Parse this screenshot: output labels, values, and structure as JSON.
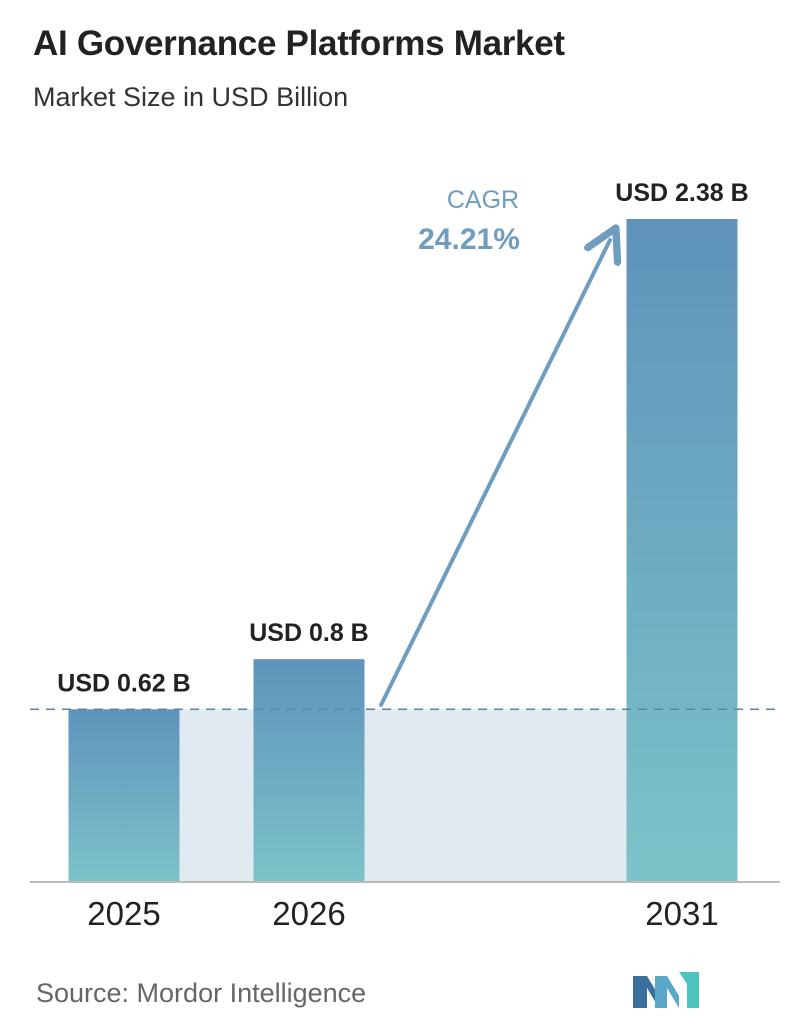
{
  "header": {
    "title": "AI Governance Platforms Market",
    "subtitle": "Market Size in USD Billion"
  },
  "chart_data": {
    "type": "bar",
    "categories": [
      "2025",
      "2026",
      "2031"
    ],
    "values": [
      0.62,
      0.8,
      2.38
    ],
    "value_labels": [
      "USD 0.62 B",
      "USD 0.8 B",
      "USD 2.38 B"
    ],
    "title": "AI Governance Platforms Market",
    "subtitle": "Market Size in USD Billion",
    "ylim": [
      0,
      2.38
    ],
    "grid": false,
    "legend": "none",
    "annotation": {
      "label": "CAGR",
      "value": "24.21%"
    },
    "colors": {
      "bar_top": "#5f93bb",
      "bar_bottom": "#7cc3c9",
      "band": "#e1e9f1",
      "dashed_line": "#5a86a6",
      "arrow": "#6f9dc0",
      "cagr_label": "#6f9dc0",
      "cagr_value": "#6f9dc0",
      "axis": "#bbbbbb"
    }
  },
  "footer": {
    "source": "Source: Mordor Intelligence",
    "logo_icon": "mordor-intelligence-logo"
  }
}
